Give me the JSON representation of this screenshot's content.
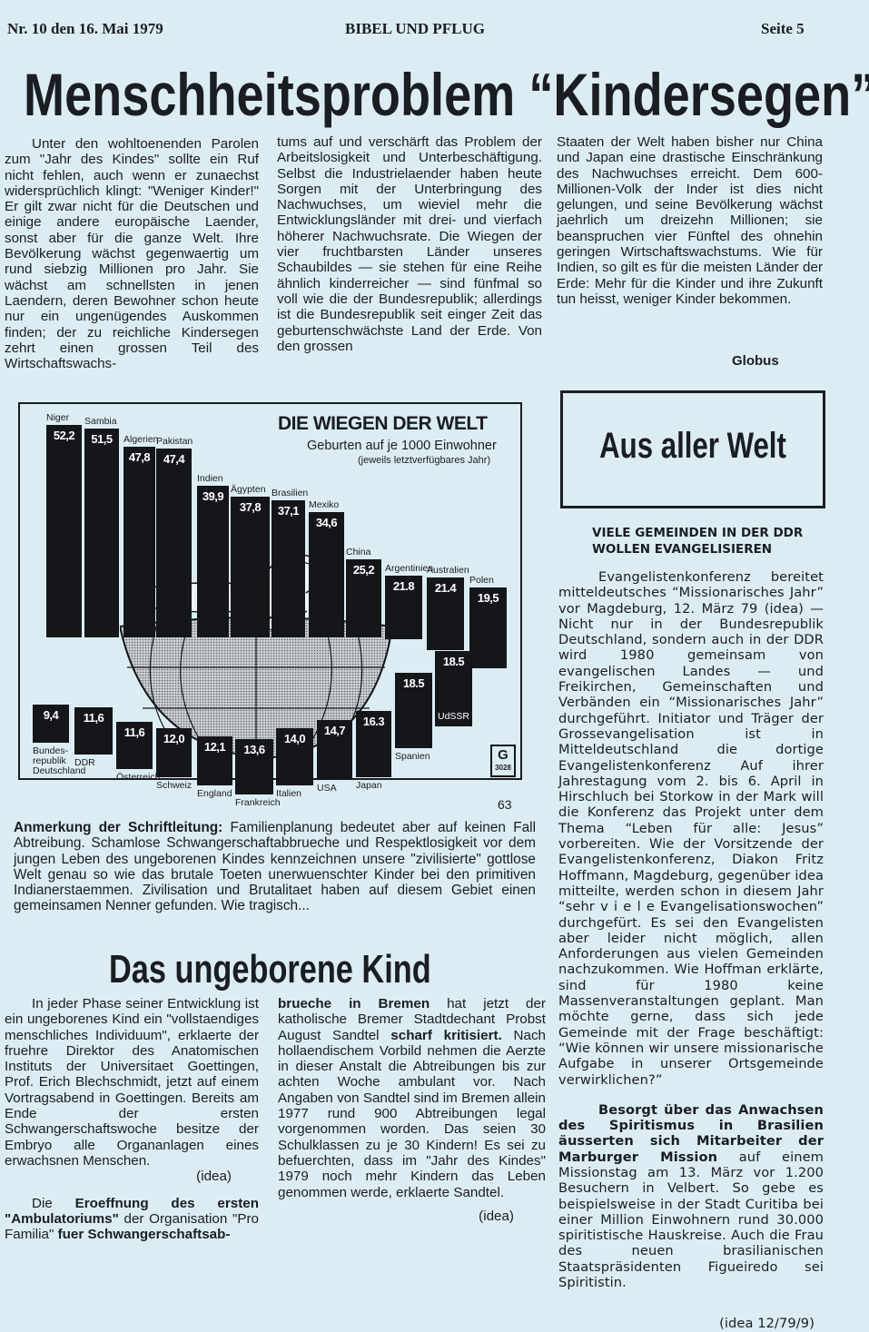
{
  "header": {
    "issue": "Nr. 10 den 16. Mai 1979",
    "paper": "BIBEL UND PFLUG",
    "page": "Seite 5"
  },
  "main_article": {
    "headline": "Menschheitsproblem “Kindersegen”",
    "col1": "Unter den wohltoenenden Parolen zum \"Jahr des Kindes\" sollte ein Ruf nicht fehlen, auch wenn er zunaechst widersprüchlich klingt: \"Weniger Kinder!\" Er gilt zwar nicht für die Deutschen und einige andere europäische Laender, sonst aber für die ganze Welt. Ihre Bevölkerung wächst gegenwaertig um rund siebzig Millionen pro Jahr. Sie wächst am schnellsten in jenen Laendern, deren Bewohner schon heute nur ein ungenügendes Auskommen finden; der zu reichliche Kindersegen zehrt einen grossen Teil des Wirtschaftswachs-",
    "col2": "tums auf und verschärft das Problem der Arbeitslosigkeit und Unterbeschäftigung. Selbst die Industrielaender haben heute Sorgen mit der Unterbringung des Nachwuchses, um wieviel mehr die Entwicklungsländer mit drei- und vierfach höherer Nachwuchsrate. Die Wiegen der vier fruchtbarsten Länder unseres Schaubildes — sie stehen für eine Reihe ähnlich kinderreicher — sind fünfmal so voll wie die der Bundesrepublik; allerdings ist die Bundesrepublik seit einger Zeit das geburtenschwächste Land der Erde. Von den grossen",
    "col3": "Staaten der Welt haben bisher nur China und Japan eine drastische Einschränkung des Nachwuchses erreicht. Dem 600-Millionen-Volk der Inder ist dies nicht gelungen, und seine Bevölkerung wächst jaehrlich um dreizehn Millionen; sie beanspruchen vier Fünftel des ohnehin geringen Wirtschaftswachstums. Wie für Indien, so gilt es für die meisten Länder der Erde: Mehr für die Kinder und ihre Zukunft tun heisst, weniger Kinder bekommen.",
    "source": "Globus"
  },
  "chart_data": {
    "type": "bar",
    "title": "DIE WIEGEN DER WELT",
    "subtitle": "Geburten auf je 1000 Einwohner",
    "note": "(jeweils letztverfügbares Jahr)",
    "publisher_mark": "3028",
    "categories": [
      "Niger",
      "Sambia",
      "Algerien",
      "Pakistan",
      "Indien",
      "Ägypten",
      "Brasilien",
      "Mexiko",
      "China",
      "Argentinien",
      "Australien",
      "Polen",
      "Bundesrepublik Deutschland",
      "DDR",
      "Österreich",
      "Schweiz",
      "England",
      "Frankreich",
      "Italien",
      "USA",
      "Japan",
      "Spanien",
      "UdSSR"
    ],
    "labels": [
      "52,2",
      "51,5",
      "47,8",
      "47,4",
      "39,9",
      "37,8",
      "37,1",
      "34,6",
      "25,2",
      "21.8",
      "21.4",
      "19,5",
      "9,4",
      "11,6",
      "11,6",
      "12,0",
      "12,1",
      "13,6",
      "14,0",
      "14,7",
      "16.3",
      "18.5",
      "18.5"
    ],
    "values": [
      52.2,
      51.5,
      47.8,
      47.4,
      39.9,
      37.8,
      37.1,
      34.6,
      25.2,
      21.8,
      21.4,
      19.5,
      9.4,
      11.6,
      11.6,
      12.0,
      12.1,
      13.6,
      14.0,
      14.7,
      16.3,
      18.5,
      18.5
    ],
    "category_labels": [
      "Niger",
      "Sambia",
      "Algerien",
      "Pakistan",
      "Indien",
      "Ägypten",
      "Brasilien",
      "Mexiko",
      "China",
      "Argentinien",
      "Australien",
      "Polen",
      "Bundes-\nrepublik\nDeutschland",
      "DDR",
      "Österreich",
      "Schweiz",
      "England",
      "Frankreich",
      "Italien",
      "USA",
      "Japan",
      "Spanien",
      "UdSSR"
    ],
    "bar_color": "#14161a",
    "grid": false
  },
  "page_number": "63",
  "note": {
    "label": "Anmerkung der Schriftleitung:",
    "text": " Familienplanung bedeutet aber auf keinen Fall Abtreibung. Schamlose Schwangerschaftabbrueche und Respektlosigkeit vor dem jungen Leben des ungeborenen Kindes kennzeichnen unsere \"zivilisierte\" gottlose Welt genau so wie das brutale Toeten unerwuenschter Kinder bei den primitiven Indianerstaemmen. Zivilisation und Brutalitaet haben auf diesem Gebiet einen gemeinsamen Nenner gefunden. Wie tragisch..."
  },
  "second_article": {
    "headline": "Das ungeborene Kind",
    "p1": "In jeder Phase seiner Entwicklung ist ein ungeborenes Kind ein \"vollstaendiges menschliches Individuum\", erklaerte der fruehre Direktor des Anatomischen Instituts der Universitaet Goettingen, Prof. Erich Blechschmidt, jetzt auf einem Vortragsabend in Goettingen. Bereits am Ende der ersten Schwangerschaftswoche besitze der Embryo alle Organanlagen eines erwachsnen Menschen.",
    "p1_source": "(idea)",
    "p2_a": "Die ",
    "p2_b1": "Eroeffnung des ersten \"Ambulatoriums\"",
    "p2_c": " der Organisation \"Pro Familia\" ",
    "p2_b2": "fuer Schwangerschaftsab-",
    "p3_b1": "brueche in Bremen",
    "p3_a": " hat jetzt der katholische Bremer Stadtdechant Probst August Sandtel ",
    "p3_b2": "scharf kritisiert.",
    "p3_c": " Nach hollaendischem Vorbild nehmen die Aerzte in dieser Anstalt die Abtreibungen bis zur achten Woche ambulant vor. Nach Angaben von Sandtel sind im Bremen allein 1977 rund 900 Abtreibungen legal vorgenommen worden. Das seien 30 Schulklassen zu je 30 Kindern! Es sei zu befuerchten, dass im \"Jahr des Kindes\" 1979 noch mehr Kindern das Leben genommen werde, erklaerte Sandtel.",
    "p3_source": "(idea)"
  },
  "sidebar": {
    "box_title": "Aus aller Welt",
    "heading": "VIELE GEMEINDEN IN DER DDR WOLLEN EVANGELISIEREN",
    "p1": "Evangelistenkonferenz bereitet mitteldeutsches “Missionarisches Jahr” vor Magdeburg, 12. März 79 (idea) — Nicht nur in der Bundesrepublik Deutschland, sondern auch in der DDR wird 1980 gemeinsam von evangelischen Landes — und Freikirchen, Gemeinschaften und Verbänden ein “Missionarisches Jahr” durchgeführt. Initiator und Träger der Grossevangelisation ist in Mitteldeutschland die dortige Evangelistenkonferenz Auf ihrer Jahrestagung vom 2. bis 6. April in Hirschluch bei Storkow in der Mark will die Konferenz das Projekt unter dem Thema “Leben für alle: Jesus” vorbereiten. Wie der Vorsitzende der Evangelistenkonferenz, Diakon Fritz Hoffmann, Magdeburg, gegenüber idea mitteilte, werden schon in diesem Jahr “sehr v i e l e Evangelisationswochen” durchgefürt. Es sei den Evangelisten aber leider nicht möglich, allen Anforderungen aus vielen Gemeinden nachzukommen. Wie Hoffman erklärte, sind für 1980 keine Massenveranstaltungen geplant. Man möchte gerne, dass sich jede Gemeinde mit der Frage beschäftigt: “Wie können wir unsere missionarische Aufgabe in unserer Ortsgemeinde verwirklichen?”",
    "p2_bold": "Besorgt über das Anwachsen des Spiritismus in Brasilien äusserten sich Mitarbeiter der Marburger Mission",
    "p2": " auf einem Missionstag am 13. März vor 1.200 Besuchern in Velbert. So gebe es beispielsweise in der Stadt Curitiba bei einer Million Einwohnern rund 30.000 spiritistische Hauskreise. Auch die Frau des neuen brasilianischen Staatspräsidenten Figueiredo sei Spiritistin.",
    "source": "(idea 12/79/9)"
  }
}
